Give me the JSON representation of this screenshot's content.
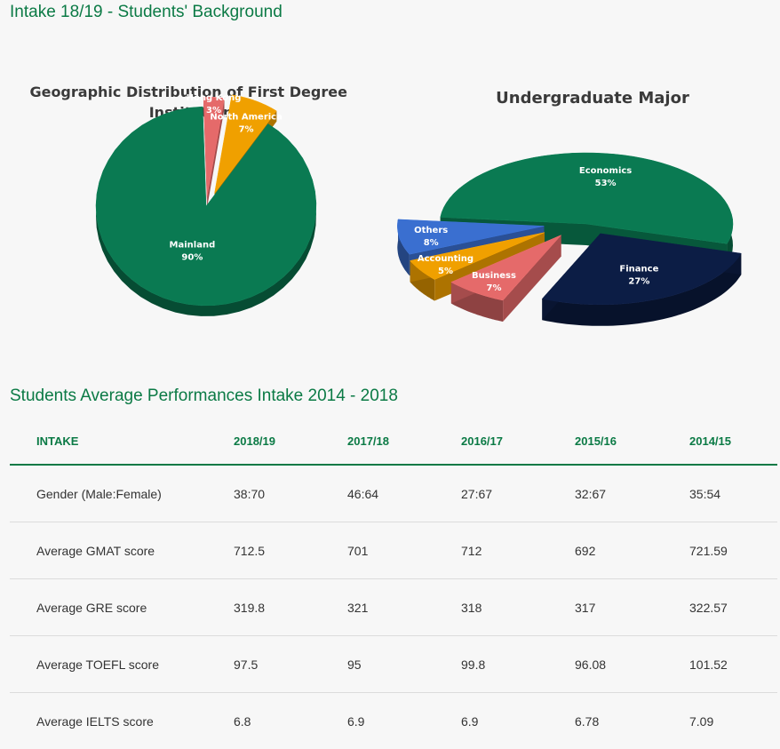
{
  "header": {
    "title": "Intake 18/19 - Students' Background",
    "performance_title": "Students Average Performances Intake 2014 - 2018"
  },
  "colors": {
    "accent": "#0b7a45",
    "mainland": "#0a7a52",
    "hong_kong": "#e56a6a",
    "north_america": "#f0a000",
    "economics": "#0a7a52",
    "finance": "#0c1d45",
    "business": "#e56a6a",
    "accounting": "#f0a000",
    "others": "#3a6fd0"
  },
  "chart_data": [
    {
      "type": "pie",
      "title": "Geographic Distribution of First Degree Institution",
      "title_lines": [
        "Geographic Distribution of First Degree",
        "Institution"
      ],
      "slices": [
        {
          "label": "Mainland",
          "value": 90,
          "display": "90%",
          "color": "#0a7a52"
        },
        {
          "label": "Hong Kong",
          "value": 3,
          "display": "3%",
          "color": "#e56a6a"
        },
        {
          "label": "North America",
          "value": 7,
          "display": "7%",
          "color": "#f0a000"
        }
      ]
    },
    {
      "type": "pie",
      "title": "Undergraduate Major",
      "slices": [
        {
          "label": "Economics",
          "value": 53,
          "display": "53%",
          "color": "#0a7a52"
        },
        {
          "label": "Finance",
          "value": 27,
          "display": "27%",
          "color": "#0c1d45"
        },
        {
          "label": "Business",
          "value": 7,
          "display": "7%",
          "color": "#e56a6a"
        },
        {
          "label": "Accounting",
          "value": 5,
          "display": "5%",
          "color": "#f0a000"
        },
        {
          "label": "Others",
          "value": 8,
          "display": "8%",
          "color": "#3a6fd0"
        }
      ]
    }
  ],
  "performance_table": {
    "headers": [
      "INTAKE",
      "2018/19",
      "2017/18",
      "2016/17",
      "2015/16",
      "2014/15"
    ],
    "rows": [
      [
        "Gender (Male:Female)",
        "38:70",
        "46:64",
        "27:67",
        "32:67",
        "35:54"
      ],
      [
        "Average GMAT score",
        "712.5",
        "701",
        "712",
        "692",
        "721.59"
      ],
      [
        "Average GRE score",
        "319.8",
        "321",
        "318",
        "317",
        "322.57"
      ],
      [
        "Average TOEFL score",
        "97.5",
        "95",
        "99.8",
        "96.08",
        "101.52"
      ],
      [
        "Average IELTS score",
        "6.8",
        "6.9",
        "6.9",
        "6.78",
        "7.09"
      ]
    ]
  }
}
